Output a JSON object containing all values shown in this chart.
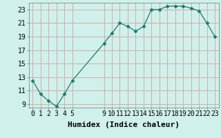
{
  "xlabel": "Humidex (Indice chaleur)",
  "x": [
    0,
    1,
    2,
    3,
    4,
    5,
    9,
    10,
    11,
    12,
    13,
    14,
    15,
    16,
    17,
    18,
    19,
    20,
    21,
    22,
    23
  ],
  "y": [
    12.5,
    10.5,
    9.5,
    8.7,
    10.5,
    12.5,
    18.0,
    19.5,
    21.0,
    20.5,
    19.8,
    20.5,
    23.0,
    23.0,
    23.5,
    23.5,
    23.5,
    23.2,
    22.8,
    21.0,
    19.0
  ],
  "xlim": [
    -0.5,
    23.5
  ],
  "ylim": [
    8.5,
    24.0
  ],
  "yticks": [
    9,
    11,
    13,
    15,
    17,
    19,
    21,
    23
  ],
  "xticks": [
    0,
    1,
    2,
    3,
    4,
    5,
    9,
    10,
    11,
    12,
    13,
    14,
    15,
    16,
    17,
    18,
    19,
    20,
    21,
    22,
    23
  ],
  "line_color": "#1a7a6e",
  "marker": "D",
  "marker_size": 2.5,
  "bg_color": "#cff0eb",
  "grid_color": "#d4a0a0",
  "xlabel_fontsize": 8,
  "tick_fontsize": 7
}
